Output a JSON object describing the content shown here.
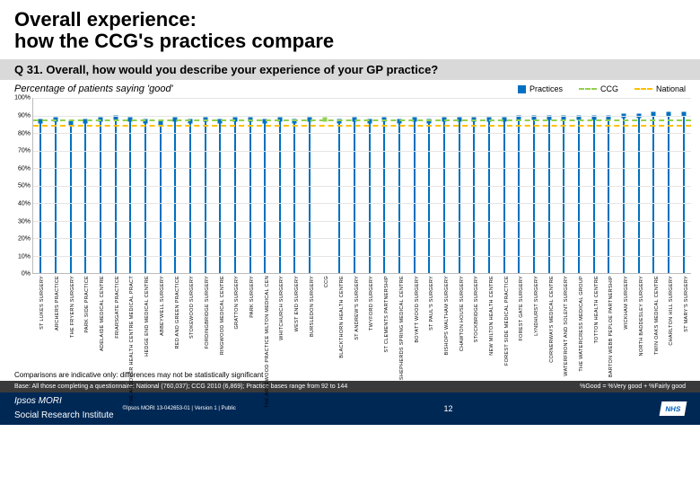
{
  "title_line1": "Overall experience:",
  "title_line2": "how the CCG's practices compare",
  "question": "Q 31. Overall, how would you describe your experience of your GP practice?",
  "subtitle": "Percentage of patients saying 'good'",
  "legend": {
    "practices": {
      "label": "Practices",
      "color": "#0070c0"
    },
    "ccg": {
      "label": "CCG",
      "color": "#92d050"
    },
    "national": {
      "label": "National",
      "color": "#ffc000"
    }
  },
  "chart": {
    "ylim": [
      0,
      100
    ],
    "ytick_step": 10,
    "grid_color": "#e5e5e5",
    "bar_color": "#0070c0",
    "ccg_marker_color": "#92d050",
    "ref_ccg": {
      "value": 88,
      "color": "#92d050"
    },
    "ref_national": {
      "value": 85,
      "color": "#ffc000"
    },
    "practices": [
      {
        "label": "ST LUKES SURGERY",
        "v": 87
      },
      {
        "label": "ARCHERS PRACTICE",
        "v": 88
      },
      {
        "label": "THE FRYERN SURGERY",
        "v": 86
      },
      {
        "label": "PARK SIDE PRACTICE",
        "v": 87
      },
      {
        "label": "ADELAIDE MEDICAL CENTRE",
        "v": 88
      },
      {
        "label": "FRIARSGATE PRACTICE",
        "v": 89
      },
      {
        "label": "THE ANDOVER HEALTH CENTRE MEDICAL PRACT",
        "v": 88
      },
      {
        "label": "HEDGE END MEDICAL CENTRE",
        "v": 87
      },
      {
        "label": "ABBEYWELL SURGERY",
        "v": 86
      },
      {
        "label": "RED AND GREEN PRACTICE",
        "v": 88
      },
      {
        "label": "STOKEWOOD SURGERY",
        "v": 87
      },
      {
        "label": "FORDINGBRIDGE SURGERY",
        "v": 88
      },
      {
        "label": "RINGWOOD MEDICAL CENTRE",
        "v": 87
      },
      {
        "label": "GRATTON SURGERY",
        "v": 88
      },
      {
        "label": "PARK SURGERY",
        "v": 88
      },
      {
        "label": "THE ARNEWOOD PRACTICE MILTON MEDICAL CEN",
        "v": 87
      },
      {
        "label": "WHITCHURCH SURGERY",
        "v": 88
      },
      {
        "label": "WEST END SURGERY",
        "v": 87
      },
      {
        "label": "BURSLEDON SURGERY",
        "v": 88,
        "type": "ccg"
      },
      {
        "label": "CCG",
        "v": 88,
        "type": "ccg_marker"
      },
      {
        "label": "BLACKTHORN HEALTH CENTRE",
        "v": 87
      },
      {
        "label": "ST ANDREW'S SURGERY",
        "v": 88
      },
      {
        "label": "TWYFORD SURGERY",
        "v": 87
      },
      {
        "label": "ST CLEMENTS PARTNERSHIP",
        "v": 88
      },
      {
        "label": "SHEPHERDS SPRING MEDICAL CENTRE",
        "v": 87
      },
      {
        "label": "BOYATT WOOD SURGERY",
        "v": 88
      },
      {
        "label": "ST PAUL'S SURGERY",
        "v": 87
      },
      {
        "label": "BISHOPS WALTHAM SURGERY",
        "v": 88
      },
      {
        "label": "CHAWTON HOUSE SURGERY",
        "v": 88
      },
      {
        "label": "STOCKBRIDGE SURGERY",
        "v": 88
      },
      {
        "label": "NEW MILTON HEALTH CENTRE",
        "v": 88
      },
      {
        "label": "FOREST SIDE MEDICAL PRACTICE",
        "v": 88
      },
      {
        "label": "FOREST GATE SURGERY",
        "v": 89
      },
      {
        "label": "LYNDHURST SURGERY",
        "v": 89
      },
      {
        "label": "CORNERWAYS MEDICAL CENTRE",
        "v": 89
      },
      {
        "label": "WATERFRONT AND SOLENT SURGERY",
        "v": 89
      },
      {
        "label": "THE WATERCRESS MEDICAL GROUP",
        "v": 89
      },
      {
        "label": "TOTTON HEALTH CENTRE",
        "v": 89
      },
      {
        "label": "BARTON WEBB PEPLOE PARTNERSHIP",
        "v": 89
      },
      {
        "label": "WICKHAM SURGERY",
        "v": 90
      },
      {
        "label": "NORTH BADDESLEY SURGERY",
        "v": 90
      },
      {
        "label": "TWIN OAKS MEDICAL CENTRE",
        "v": 91
      },
      {
        "label": "CHARLTON HILL SURGERY",
        "v": 91
      },
      {
        "label": "ST MARY'S SURGERY",
        "v": 91
      }
    ]
  },
  "comparison_note": "Comparisons are indicative only: differences may not be statistically significant",
  "base_text": "Base: All those completing a questionnaire: National (760,037); CCG 2010 (6,869); Practice bases range from 92 to 144",
  "good_def": "%Good = %Very good + %Fairly good",
  "footer": {
    "ipsos": "Ipsos MORI",
    "ipsos_sub": "Social Research Institute",
    "copy": "©Ipsos MORI    13-042653-01 | Version 1 | Public",
    "page": "12"
  }
}
